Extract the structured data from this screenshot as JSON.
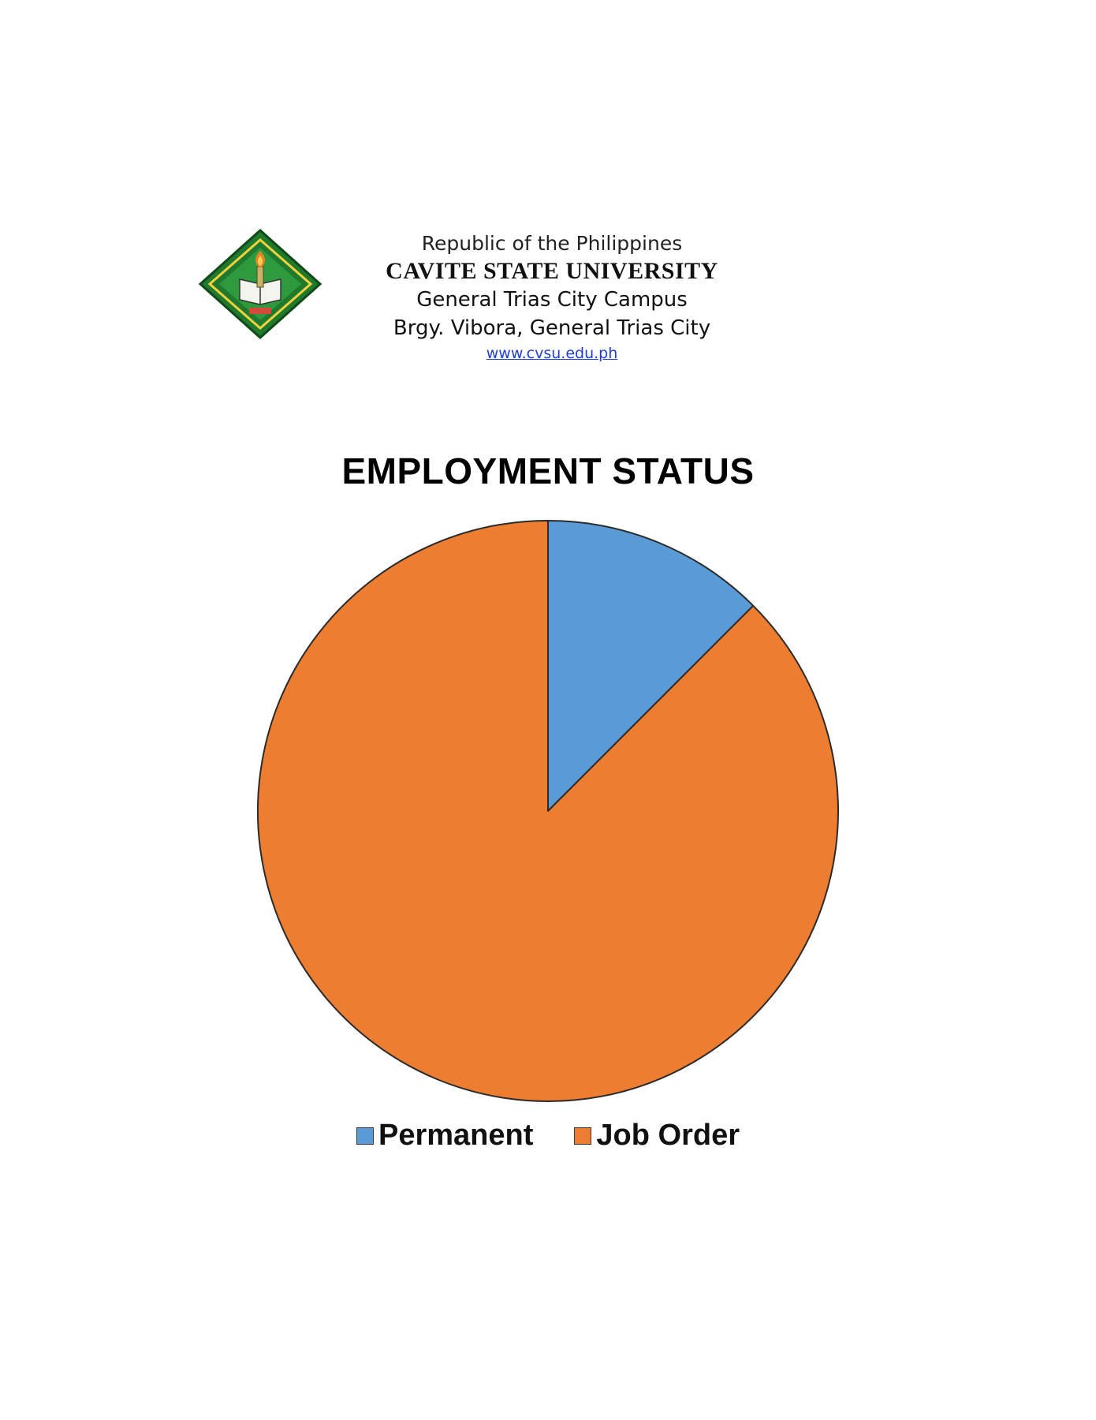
{
  "header": {
    "republic": "Republic of the Philippines",
    "university": "CAVITE STATE UNIVERSITY",
    "campus": "General Trias City Campus",
    "address": "Brgy. Vibora, General Trias City",
    "website": "www.cvsu.edu.ph"
  },
  "logo": {
    "icon": "cvsu-seal-icon",
    "colors": {
      "outer": "#1f7a2e",
      "inner": "#2e9a3e",
      "ring": "#f2d23c",
      "torch": "#e8832a"
    }
  },
  "chart_data": {
    "type": "pie",
    "title": "EMPLOYMENT STATUS",
    "categories": [
      "Permanent",
      "Job Order"
    ],
    "values": [
      12.5,
      87.5
    ],
    "colors": [
      "#5b9bd5",
      "#ed7d31"
    ],
    "legend": "bottom",
    "start_angle_deg": 0,
    "direction": "clockwise"
  }
}
